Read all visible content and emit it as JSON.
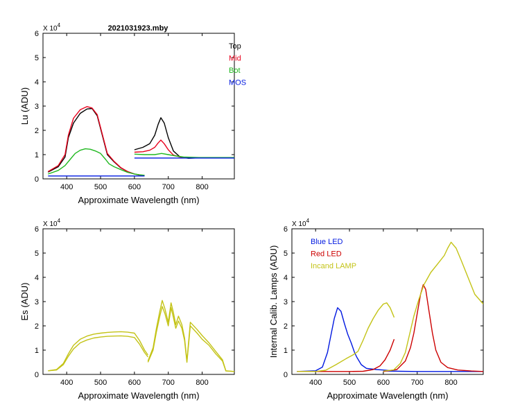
{
  "figure_title": "2021031923.mby",
  "colors": {
    "black": "#000000",
    "red": "#e8001c",
    "green": "#1fb81f",
    "blue": "#0018e0",
    "olive": "#c3c316",
    "darkred": "#cc0000"
  },
  "chart_data": [
    {
      "type": "line",
      "title": "2021031923.mby",
      "xlabel": "Approximate Wavelength (nm)",
      "ylabel": "Lu (ADU)",
      "exponent_label": "X 10",
      "exponent_power": "4",
      "xlim": [
        330,
        895
      ],
      "ylim": [
        0,
        6
      ],
      "x_ticks": [
        400,
        500,
        600,
        700,
        800
      ],
      "y_ticks": [
        0,
        1,
        2,
        3,
        4,
        5,
        6
      ],
      "legend_position": "top-right",
      "legend": [
        {
          "name": "Top",
          "color": "#000000"
        },
        {
          "name": "Mid",
          "color": "#e8001c"
        },
        {
          "name": "Bot",
          "color": "#1fb81f"
        },
        {
          "name": "MOS",
          "color": "#0018e0"
        }
      ],
      "series": [
        {
          "name": "Top",
          "color": "#000000",
          "segments": [
            {
              "x": [
                345,
                375,
                395,
                405,
                420,
                440,
                460,
                475,
                490,
                505,
                520,
                540,
                560,
                580,
                600,
                615,
                630
              ],
              "y": [
                0.28,
                0.5,
                0.9,
                1.7,
                2.3,
                2.7,
                2.88,
                2.9,
                2.6,
                1.8,
                1.0,
                0.7,
                0.45,
                0.3,
                0.2,
                0.16,
                0.14
              ]
            },
            {
              "x": [
                600,
                625,
                645,
                660,
                670,
                678,
                688,
                700,
                715,
                735,
                760,
                790,
                830,
                870,
                895
              ],
              "y": [
                1.2,
                1.3,
                1.45,
                1.8,
                2.25,
                2.52,
                2.3,
                1.7,
                1.15,
                0.9,
                0.85,
                0.87,
                0.88,
                0.88,
                0.88
              ]
            }
          ]
        },
        {
          "name": "Mid",
          "color": "#e8001c",
          "segments": [
            {
              "x": [
                345,
                375,
                395,
                405,
                420,
                440,
                460,
                475,
                490,
                505,
                520,
                540,
                560,
                580,
                600,
                615,
                630
              ],
              "y": [
                0.3,
                0.55,
                1.0,
                1.8,
                2.5,
                2.85,
                2.98,
                2.92,
                2.65,
                1.85,
                1.05,
                0.72,
                0.46,
                0.3,
                0.2,
                0.16,
                0.14
              ]
            },
            {
              "x": [
                600,
                625,
                645,
                660,
                670,
                678,
                688,
                700,
                715,
                735,
                760,
                790,
                830,
                870,
                895
              ],
              "y": [
                1.1,
                1.12,
                1.18,
                1.3,
                1.48,
                1.6,
                1.45,
                1.2,
                0.98,
                0.9,
                0.88,
                0.88,
                0.88,
                0.88,
                0.88
              ]
            }
          ]
        },
        {
          "name": "Bot",
          "color": "#1fb81f",
          "segments": [
            {
              "x": [
                345,
                375,
                395,
                410,
                425,
                440,
                455,
                470,
                485,
                500,
                515,
                525,
                540,
                560,
                580,
                600,
                615,
                630
              ],
              "y": [
                0.2,
                0.35,
                0.55,
                0.8,
                1.05,
                1.18,
                1.24,
                1.22,
                1.15,
                1.05,
                0.8,
                0.62,
                0.5,
                0.38,
                0.27,
                0.2,
                0.17,
                0.15
              ]
            },
            {
              "x": [
                600,
                630,
                660,
                680,
                700,
                720,
                745,
                790,
                850,
                895
              ],
              "y": [
                1.02,
                1.0,
                1.0,
                1.05,
                1.0,
                0.95,
                0.9,
                0.88,
                0.88,
                0.88
              ]
            }
          ]
        },
        {
          "name": "MOS",
          "color": "#0018e0",
          "segments": [
            {
              "x": [
                345,
                630
              ],
              "y": [
                0.12,
                0.12
              ]
            },
            {
              "x": [
                600,
                895
              ],
              "y": [
                0.86,
                0.86
              ]
            }
          ]
        }
      ]
    },
    {
      "type": "line",
      "xlabel": "Approximate Wavelength (nm)",
      "ylabel": "Es  (ADU)",
      "exponent_label": "X 10",
      "exponent_power": "4",
      "xlim": [
        330,
        895
      ],
      "ylim": [
        0,
        6
      ],
      "x_ticks": [
        400,
        500,
        600,
        700,
        800
      ],
      "y_ticks": [
        0,
        1,
        2,
        3,
        4,
        5,
        6
      ],
      "series": [
        {
          "color": "#c3c316",
          "segments": [
            {
              "x": [
                345,
                370,
                390,
                405,
                420,
                440,
                460,
                480,
                500,
                520,
                540,
                560,
                580,
                600,
                615,
                630,
                640
              ],
              "y": [
                0.15,
                0.2,
                0.45,
                0.85,
                1.2,
                1.45,
                1.58,
                1.66,
                1.7,
                1.73,
                1.75,
                1.76,
                1.74,
                1.7,
                1.4,
                1.0,
                0.8
              ]
            },
            {
              "x": [
                640,
                655,
                665,
                675,
                682,
                690,
                700,
                708,
                715,
                722,
                730,
                740,
                748,
                755,
                765,
                785,
                800,
                820,
                840,
                860,
                870,
                895
              ],
              "y": [
                0.55,
                1.1,
                1.9,
                2.6,
                3.05,
                2.7,
                2.15,
                2.95,
                2.55,
                2.05,
                2.4,
                2.05,
                1.5,
                0.55,
                2.15,
                1.85,
                1.6,
                1.3,
                0.95,
                0.6,
                0.15,
                0.12
              ]
            }
          ]
        },
        {
          "color": "#c3c316",
          "segments": [
            {
              "x": [
                345,
                370,
                390,
                405,
                420,
                440,
                460,
                480,
                500,
                520,
                540,
                560,
                580,
                600,
                615,
                630,
                640
              ],
              "y": [
                0.15,
                0.18,
                0.4,
                0.75,
                1.05,
                1.3,
                1.42,
                1.5,
                1.54,
                1.57,
                1.58,
                1.59,
                1.57,
                1.52,
                1.25,
                0.9,
                0.72
              ]
            },
            {
              "x": [
                640,
                655,
                665,
                675,
                682,
                690,
                700,
                708,
                715,
                722,
                730,
                740,
                748,
                755,
                765,
                785,
                800,
                820,
                840,
                860,
                870,
                895
              ],
              "y": [
                0.5,
                1.0,
                1.75,
                2.4,
                2.8,
                2.5,
                2.0,
                2.75,
                2.35,
                1.9,
                2.2,
                1.9,
                1.4,
                0.5,
                2.0,
                1.7,
                1.45,
                1.2,
                0.85,
                0.55,
                0.14,
                0.12
              ]
            }
          ]
        }
      ]
    },
    {
      "type": "line",
      "xlabel": "Approximate Wavelength (nm)",
      "ylabel": "Internal Calib. Lamps  (ADU)",
      "exponent_label": "X 10",
      "exponent_power": "4",
      "xlim": [
        330,
        895
      ],
      "ylim": [
        0,
        6
      ],
      "x_ticks": [
        400,
        500,
        600,
        700,
        800
      ],
      "y_ticks": [
        0,
        1,
        2,
        3,
        4,
        5,
        6
      ],
      "legend_position": "top-left",
      "legend": [
        {
          "name": "Blue LED",
          "color": "#0018e0"
        },
        {
          "name": "Red LED",
          "color": "#cc0000"
        },
        {
          "name": "Incand LAMP",
          "color": "#c3c316"
        }
      ],
      "series": [
        {
          "name": "Blue LED",
          "color": "#0018e0",
          "segments": [
            {
              "x": [
                345,
                400,
                420,
                435,
                445,
                455,
                465,
                475,
                485,
                495,
                505,
                515,
                522,
                535,
                550,
                580,
                600,
                630
              ],
              "y": [
                0.12,
                0.15,
                0.3,
                0.9,
                1.6,
                2.3,
                2.75,
                2.6,
                2.1,
                1.65,
                1.3,
                0.9,
                0.7,
                0.4,
                0.25,
                0.2,
                0.18,
                0.15
              ]
            },
            {
              "x": [
                600,
                650,
                700,
                760,
                820,
                895
              ],
              "y": [
                0.14,
                0.13,
                0.12,
                0.12,
                0.12,
                0.12
              ]
            }
          ]
        },
        {
          "name": "Red LED",
          "color": "#cc0000",
          "segments": [
            {
              "x": [
                345,
                400,
                450,
                500,
                540,
                570,
                590,
                605,
                620,
                632
              ],
              "y": [
                0.12,
                0.12,
                0.12,
                0.12,
                0.13,
                0.2,
                0.35,
                0.6,
                1.0,
                1.45
              ]
            },
            {
              "x": [
                600,
                640,
                665,
                680,
                690,
                700,
                710,
                718,
                725,
                735,
                745,
                755,
                770,
                790,
                820,
                860,
                895
              ],
              "y": [
                0.12,
                0.2,
                0.55,
                1.1,
                1.7,
                2.5,
                3.3,
                3.7,
                3.5,
                2.6,
                1.7,
                1.0,
                0.5,
                0.28,
                0.18,
                0.14,
                0.12
              ]
            }
          ]
        },
        {
          "name": "Incand LAMP",
          "color": "#c3c316",
          "segments": [
            {
              "x": [
                345,
                400,
                430,
                460,
                490,
                510,
                525,
                540,
                555,
                570,
                585,
                600,
                610,
                620,
                632
              ],
              "y": [
                0.12,
                0.12,
                0.17,
                0.4,
                0.65,
                0.8,
                0.95,
                1.4,
                1.9,
                2.3,
                2.65,
                2.9,
                2.95,
                2.75,
                2.35
              ]
            },
            {
              "x": [
                600,
                630,
                650,
                665,
                675,
                690,
                705,
                720,
                740,
                760,
                780,
                790,
                800,
                815,
                830,
                850,
                870,
                895
              ],
              "y": [
                0.14,
                0.18,
                0.45,
                0.9,
                1.5,
                2.4,
                3.1,
                3.7,
                4.2,
                4.55,
                4.9,
                5.2,
                5.45,
                5.2,
                4.7,
                4.0,
                3.3,
                2.9
              ]
            }
          ]
        }
      ]
    }
  ]
}
